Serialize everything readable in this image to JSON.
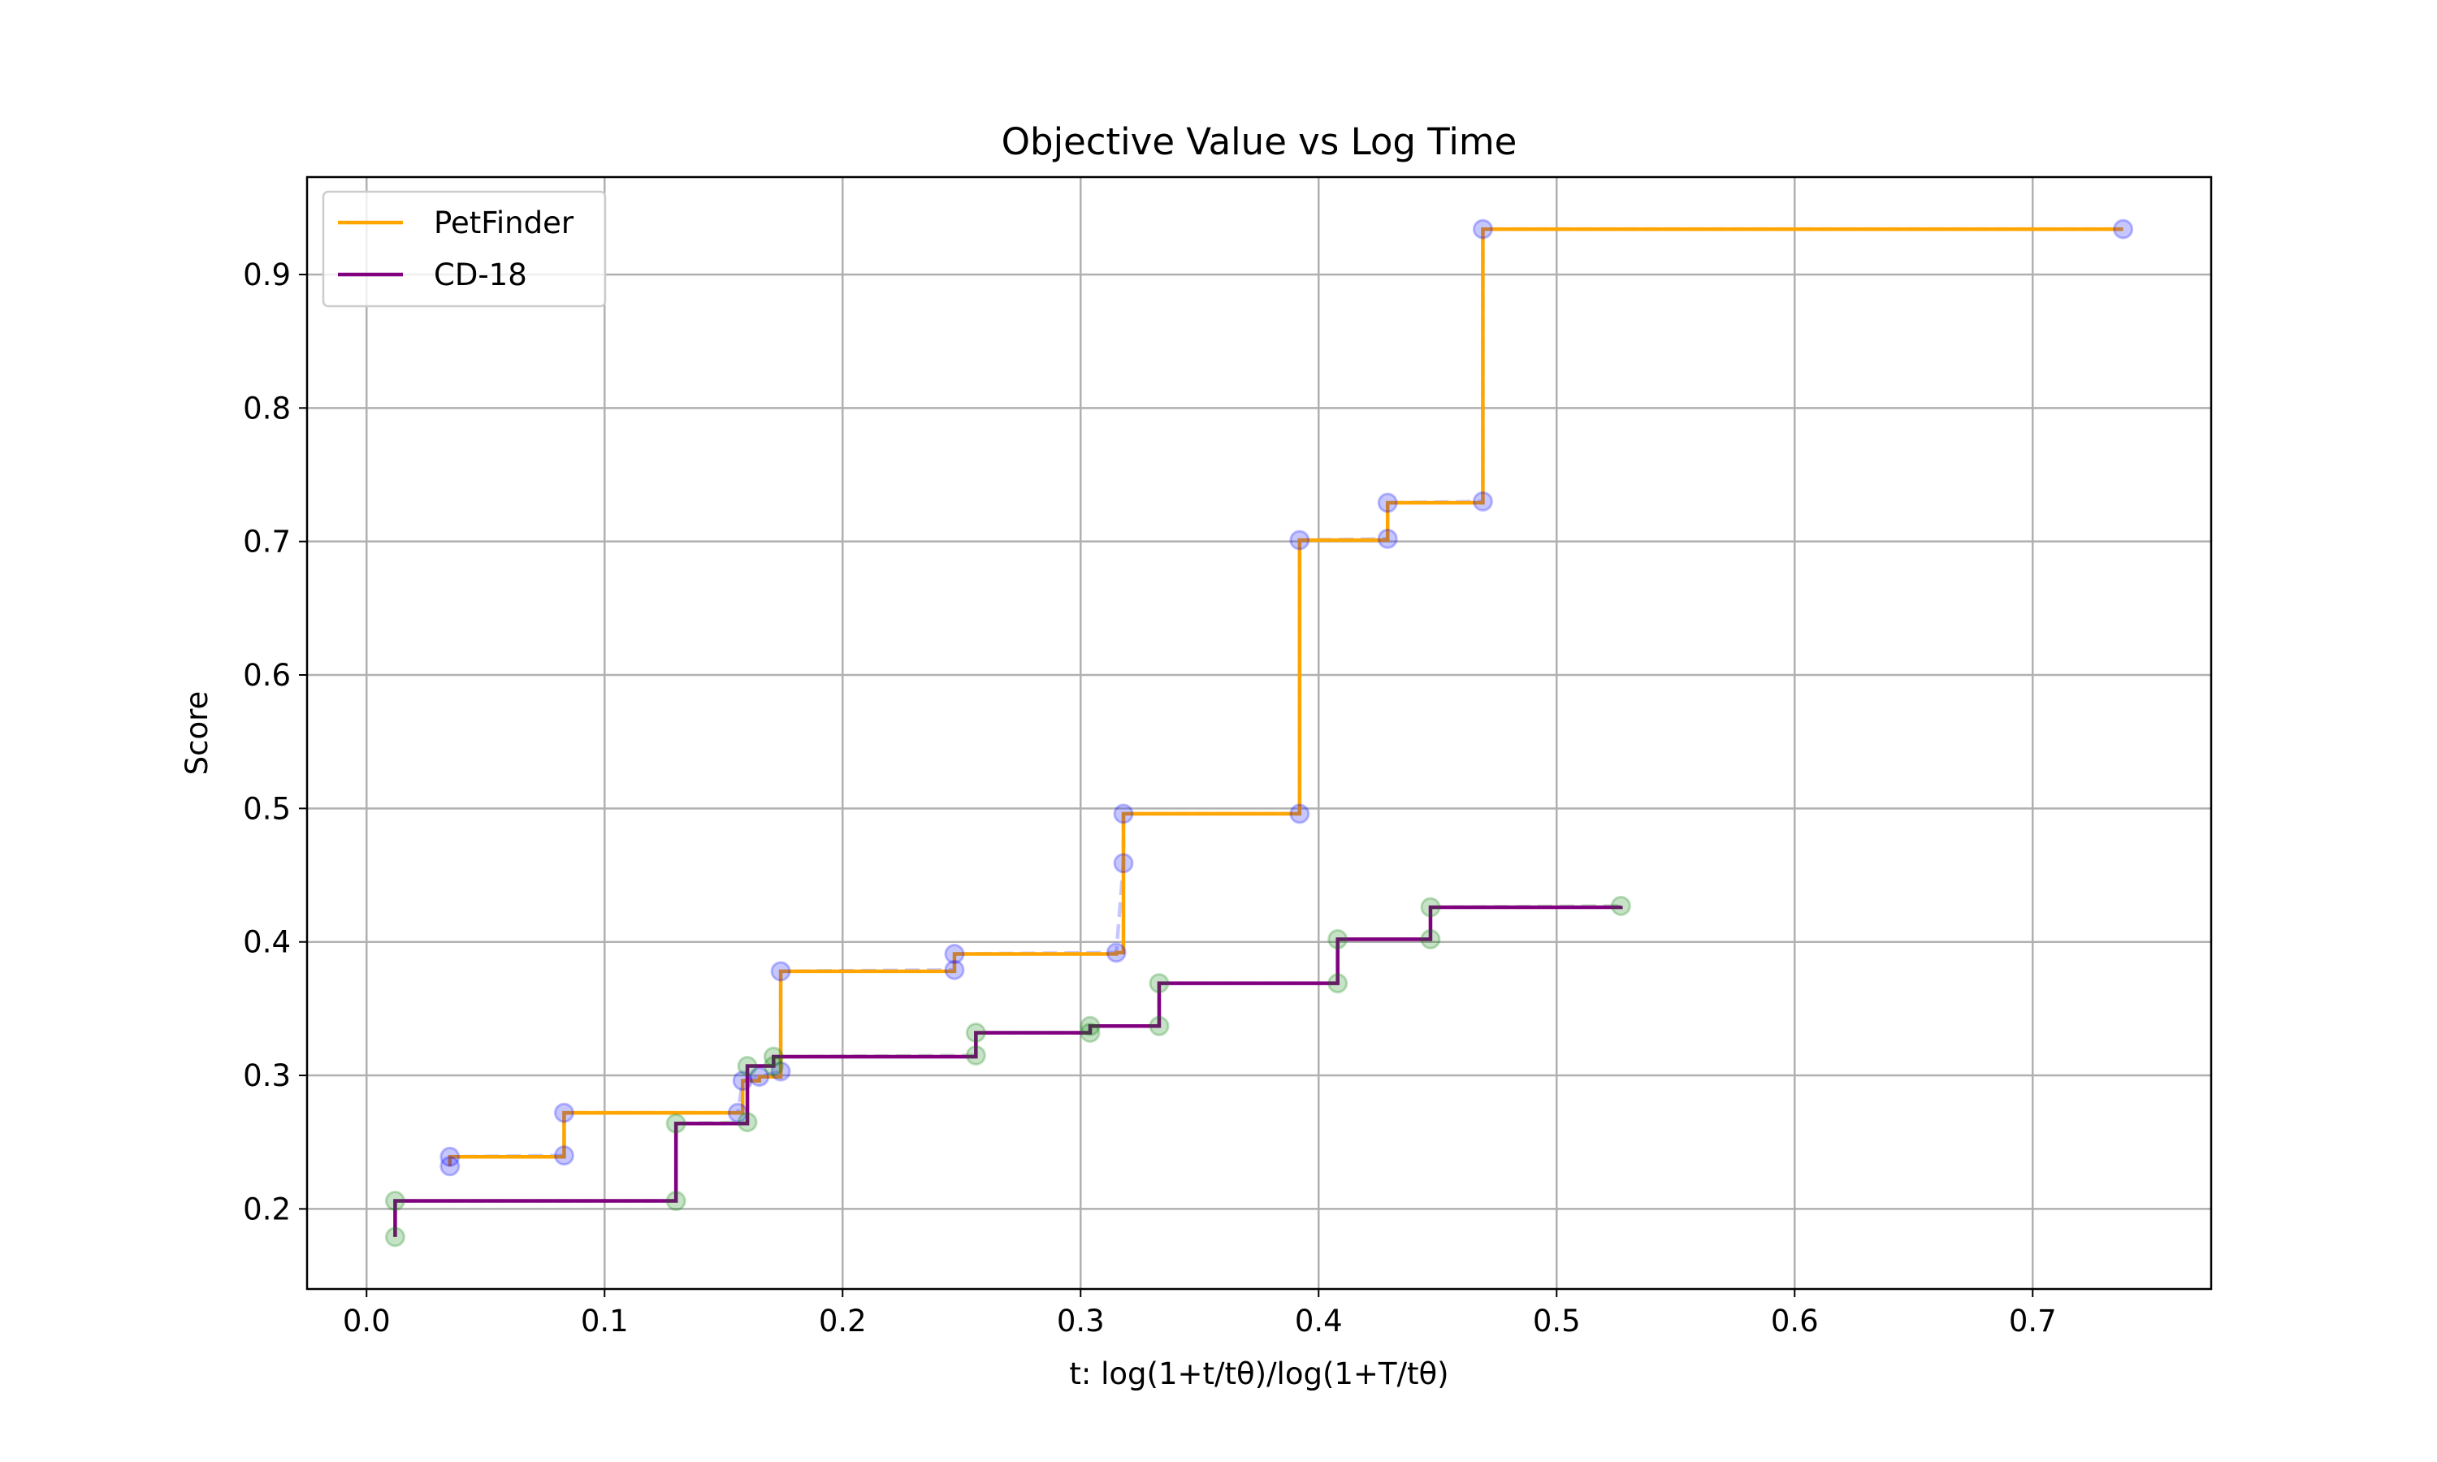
{
  "chart_data": {
    "type": "line",
    "title": "Objective Value vs Log Time",
    "xlabel": "t: log(1+t/tθ)/log(1+T/tθ)",
    "ylabel": "Score",
    "xlim": [
      -0.025,
      0.775
    ],
    "ylim": [
      0.14,
      0.973
    ],
    "xticks": [
      "0.0",
      "0.1",
      "0.2",
      "0.3",
      "0.4",
      "0.5",
      "0.6",
      "0.7"
    ],
    "yticks": [
      "0.2",
      "0.3",
      "0.4",
      "0.5",
      "0.6",
      "0.7",
      "0.8",
      "0.9"
    ],
    "grid": true,
    "legend_position": "top-left",
    "series": [
      {
        "name": "PetFinder",
        "step_color": "#ffa500",
        "scatter_color": "#0000ff",
        "points": [
          {
            "x": 0.035,
            "y": 0.232
          },
          {
            "x": 0.035,
            "y": 0.239
          },
          {
            "x": 0.083,
            "y": 0.24
          },
          {
            "x": 0.083,
            "y": 0.272
          },
          {
            "x": 0.156,
            "y": 0.272
          },
          {
            "x": 0.158,
            "y": 0.296
          },
          {
            "x": 0.165,
            "y": 0.299
          },
          {
            "x": 0.174,
            "y": 0.303
          },
          {
            "x": 0.174,
            "y": 0.378
          },
          {
            "x": 0.247,
            "y": 0.379
          },
          {
            "x": 0.247,
            "y": 0.391
          },
          {
            "x": 0.315,
            "y": 0.392
          },
          {
            "x": 0.318,
            "y": 0.459
          },
          {
            "x": 0.318,
            "y": 0.496
          },
          {
            "x": 0.392,
            "y": 0.496
          },
          {
            "x": 0.392,
            "y": 0.701
          },
          {
            "x": 0.429,
            "y": 0.702
          },
          {
            "x": 0.429,
            "y": 0.729
          },
          {
            "x": 0.469,
            "y": 0.73
          },
          {
            "x": 0.469,
            "y": 0.934
          },
          {
            "x": 0.738,
            "y": 0.934
          }
        ]
      },
      {
        "name": "CD-18",
        "step_color": "#800080",
        "scatter_color": "#008000",
        "points": [
          {
            "x": 0.012,
            "y": 0.179
          },
          {
            "x": 0.012,
            "y": 0.206
          },
          {
            "x": 0.13,
            "y": 0.206
          },
          {
            "x": 0.13,
            "y": 0.264
          },
          {
            "x": 0.16,
            "y": 0.265
          },
          {
            "x": 0.16,
            "y": 0.307
          },
          {
            "x": 0.171,
            "y": 0.307
          },
          {
            "x": 0.171,
            "y": 0.314
          },
          {
            "x": 0.256,
            "y": 0.315
          },
          {
            "x": 0.256,
            "y": 0.332
          },
          {
            "x": 0.304,
            "y": 0.332
          },
          {
            "x": 0.304,
            "y": 0.337
          },
          {
            "x": 0.333,
            "y": 0.337
          },
          {
            "x": 0.333,
            "y": 0.369
          },
          {
            "x": 0.408,
            "y": 0.369
          },
          {
            "x": 0.408,
            "y": 0.402
          },
          {
            "x": 0.447,
            "y": 0.402
          },
          {
            "x": 0.447,
            "y": 0.426
          },
          {
            "x": 0.527,
            "y": 0.427
          }
        ]
      }
    ]
  }
}
